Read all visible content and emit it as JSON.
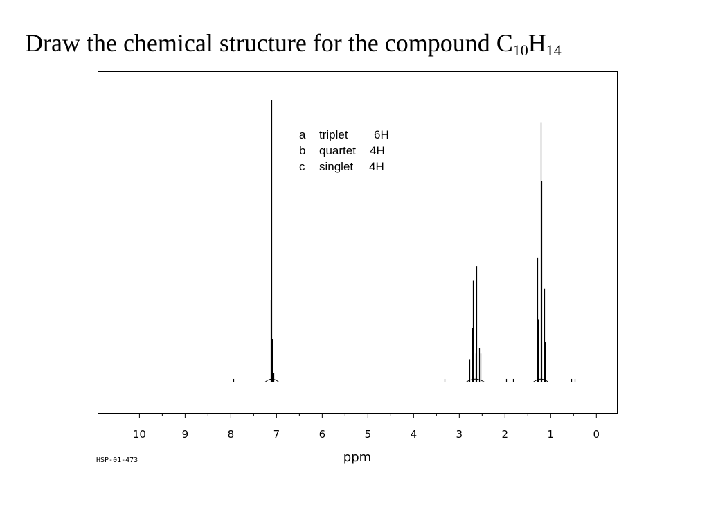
{
  "title": {
    "text": "Draw the chemical structure for the compound C",
    "sub1": "10",
    "mid": "H",
    "sub2": "14"
  },
  "chart_data": {
    "type": "line",
    "xlabel": "ppm",
    "xlim": [
      10.9,
      -0.45
    ],
    "x_reversed": true,
    "x_ticks": [
      10,
      9,
      8,
      7,
      6,
      5,
      4,
      3,
      2,
      1,
      0
    ],
    "x_tick_labels": [
      "10",
      "9",
      "8",
      "7",
      "6",
      "5",
      "4",
      "3",
      "2",
      "1",
      "0"
    ],
    "ylim": [
      0,
      100
    ],
    "grid": false,
    "spectrum_id": "HSP-01-473",
    "annotations": [
      {
        "letter": "a",
        "multiplicity": "triplet",
        "integration": "6H"
      },
      {
        "letter": "b",
        "multiplicity": "quartet",
        "integration": "4H"
      },
      {
        "letter": "c",
        "multiplicity": "singlet",
        "integration": "4H"
      }
    ],
    "peaks": [
      {
        "ppm": 7.13,
        "height": 29
      },
      {
        "ppm": 7.11,
        "height": 100
      },
      {
        "ppm": 7.09,
        "height": 15
      },
      {
        "ppm": 7.06,
        "height": 3
      },
      {
        "ppm": 2.78,
        "height": 8
      },
      {
        "ppm": 2.72,
        "height": 19
      },
      {
        "ppm": 2.7,
        "height": 36
      },
      {
        "ppm": 2.64,
        "height": 10
      },
      {
        "ppm": 2.62,
        "height": 41
      },
      {
        "ppm": 2.56,
        "height": 12
      },
      {
        "ppm": 2.54,
        "height": 10
      },
      {
        "ppm": 1.3,
        "height": 44
      },
      {
        "ppm": 1.28,
        "height": 22
      },
      {
        "ppm": 1.22,
        "height": 92
      },
      {
        "ppm": 1.2,
        "height": 71
      },
      {
        "ppm": 1.14,
        "height": 33
      },
      {
        "ppm": 1.12,
        "height": 14
      },
      {
        "ppm": 7.95,
        "height": 0.5
      },
      {
        "ppm": 3.32,
        "height": 0.5
      },
      {
        "ppm": 1.98,
        "height": 0.5
      },
      {
        "ppm": 1.83,
        "height": 0.5
      },
      {
        "ppm": 0.55,
        "height": 0.5
      },
      {
        "ppm": 0.47,
        "height": 0.5
      }
    ]
  }
}
